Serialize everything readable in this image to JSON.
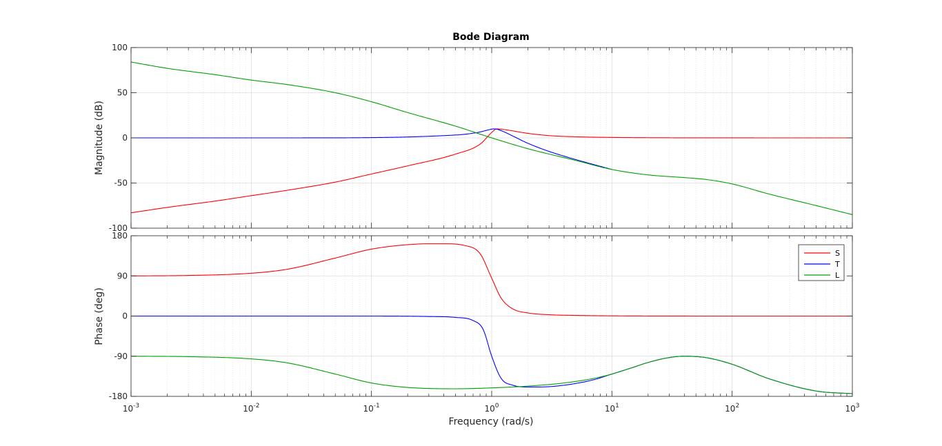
{
  "chart_data": {
    "type": "line",
    "title": "Bode Diagram",
    "xlabel": "Frequency  (rad/s)",
    "xscale": "log",
    "xlim": [
      0.001,
      1000
    ],
    "xticks": [
      0.001,
      0.01,
      0.1,
      1,
      10,
      100,
      1000
    ],
    "xtick_labels": [
      {
        "base": "10",
        "exp": "-3"
      },
      {
        "base": "10",
        "exp": "-2"
      },
      {
        "base": "10",
        "exp": "-1"
      },
      {
        "base": "10",
        "exp": "0"
      },
      {
        "base": "10",
        "exp": "1"
      },
      {
        "base": "10",
        "exp": "2"
      },
      {
        "base": "10",
        "exp": "3"
      }
    ],
    "grid": true,
    "legend_position": "top-right",
    "panels": [
      {
        "id": "magnitude",
        "ylabel": "Magnitude (dB)",
        "ylim": [
          -100,
          100
        ],
        "yticks": [
          -100,
          -50,
          0,
          50,
          100
        ],
        "ytick_labels": [
          "-100",
          "-50",
          "0",
          "50",
          "100"
        ],
        "series": [
          {
            "name": "S",
            "color": "#ff0000",
            "x": [
              0.001,
              0.002,
              0.005,
              0.01,
              0.02,
              0.05,
              0.1,
              0.2,
              0.5,
              0.8,
              1.0,
              1.1,
              1.3,
              2,
              3,
              5,
              10,
              30,
              100,
              1000
            ],
            "y": [
              -83,
              -77,
              -70,
              -64,
              -58,
              -49,
              -40,
              -31,
              -18,
              -7,
              6,
              10,
              9,
              5,
              2.5,
              1.2,
              0.5,
              0.1,
              0.02,
              0
            ]
          },
          {
            "name": "T",
            "color": "#0000ff",
            "x": [
              0.001,
              0.01,
              0.05,
              0.1,
              0.2,
              0.4,
              0.6,
              0.8,
              0.95,
              1.05,
              1.2,
              1.5,
              2,
              3,
              5,
              10
            ],
            "y": [
              0,
              0,
              0.05,
              0.3,
              1,
              2.5,
              4,
              6.5,
              9,
              10,
              8,
              2,
              -6,
              -15,
              -24,
              -35
            ]
          },
          {
            "name": "L",
            "color": "#00a000",
            "x": [
              0.001,
              0.002,
              0.005,
              0.01,
              0.02,
              0.05,
              0.1,
              0.2,
              0.5,
              1,
              2,
              5,
              10,
              20,
              40,
              60,
              100,
              200,
              500,
              1000
            ],
            "y": [
              84,
              77,
              70,
              64,
              59,
              50,
              40,
              28,
              13,
              0,
              -12,
              -25,
              -35,
              -41,
              -44,
              -46,
              -51,
              -62,
              -75,
              -85
            ]
          }
        ]
      },
      {
        "id": "phase",
        "ylabel": "Phase (deg)",
        "ylim": [
          -180,
          180
        ],
        "yticks": [
          -180,
          -90,
          0,
          90,
          180
        ],
        "ytick_labels": [
          "-180",
          "-90",
          "0",
          "90",
          "180"
        ],
        "series": [
          {
            "name": "S",
            "color": "#ff0000",
            "x": [
              0.001,
              0.003,
              0.01,
              0.02,
              0.05,
              0.1,
              0.2,
              0.3,
              0.4,
              0.6,
              0.8,
              1.0,
              1.2,
              1.5,
              2,
              3,
              5,
              10,
              100,
              1000
            ],
            "y": [
              90,
              91,
              96,
              105,
              130,
              150,
              160,
              162,
              162,
              158,
              140,
              85,
              40,
              16,
              7,
              3,
              1.5,
              0.5,
              0,
              0
            ]
          },
          {
            "name": "T",
            "color": "#0000ff",
            "x": [
              0.001,
              0.1,
              0.3,
              0.5,
              0.7,
              0.85,
              1.0,
              1.2,
              1.5,
              2,
              2.5,
              4,
              7,
              10,
              15,
              20,
              30,
              40,
              60,
              100,
              200,
              500,
              1000
            ],
            "y": [
              0,
              0,
              -1,
              -3,
              -10,
              -30,
              -90,
              -140,
              -155,
              -159,
              -159,
              -155,
              -143,
              -130,
              -115,
              -104,
              -93,
              -90,
              -93,
              -108,
              -140,
              -168,
              -174
            ]
          },
          {
            "name": "L",
            "color": "#00a000",
            "x": [
              0.001,
              0.003,
              0.01,
              0.02,
              0.05,
              0.1,
              0.2,
              0.5,
              1,
              2,
              4,
              7,
              10,
              15,
              20,
              30,
              40,
              60,
              100,
              200,
              500,
              1000
            ],
            "y": [
              -90,
              -91,
              -96,
              -105,
              -130,
              -150,
              -160,
              -163,
              -161,
              -157,
              -150,
              -140,
              -130,
              -115,
              -104,
              -93,
              -90,
              -93,
              -108,
              -140,
              -168,
              -174
            ]
          }
        ]
      }
    ]
  }
}
